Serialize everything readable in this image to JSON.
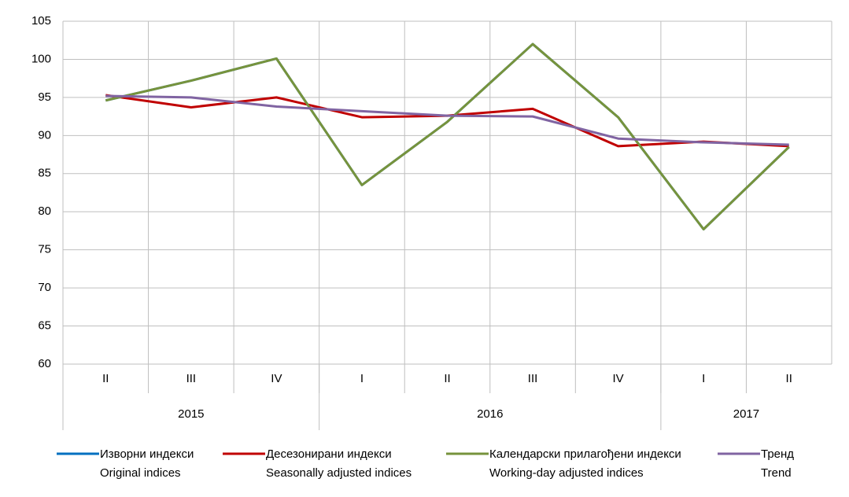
{
  "chart_data": {
    "type": "line",
    "categories": [
      "II",
      "III",
      "IV",
      "I",
      "II",
      "III",
      "IV",
      "I",
      "II"
    ],
    "category_groups": [
      {
        "label": "2015",
        "span": 3
      },
      {
        "label": "2016",
        "span": 4
      },
      {
        "label": "2017",
        "span": 2
      }
    ],
    "series": [
      {
        "name": "Изворни индекси",
        "name_en": "Original indices",
        "color": "#0070c0",
        "values": [
          94.6,
          97.2,
          100.1,
          83.5,
          91.8,
          102.0,
          92.4,
          77.7,
          88.5
        ]
      },
      {
        "name": "Десезонирани индекси",
        "name_en": "Seasonally adjusted indices",
        "color": "#c00000",
        "values": [
          95.3,
          93.7,
          95.0,
          92.4,
          92.6,
          93.5,
          88.6,
          89.2,
          88.6
        ]
      },
      {
        "name": "Календарски прилагођени индекси",
        "name_en": "Working-day adjusted indices",
        "color": "#77933c",
        "values": [
          94.6,
          97.2,
          100.1,
          83.5,
          91.8,
          102.0,
          92.4,
          77.7,
          88.5
        ]
      },
      {
        "name": "Тренд",
        "name_en": "Trend",
        "color": "#8064a2",
        "values": [
          95.2,
          95.0,
          93.8,
          93.2,
          92.6,
          92.5,
          89.6,
          89.1,
          88.8
        ]
      }
    ],
    "ylim": [
      60,
      105
    ],
    "yticks": [
      60,
      65,
      70,
      75,
      80,
      85,
      90,
      95,
      100,
      105
    ],
    "grid": true
  }
}
